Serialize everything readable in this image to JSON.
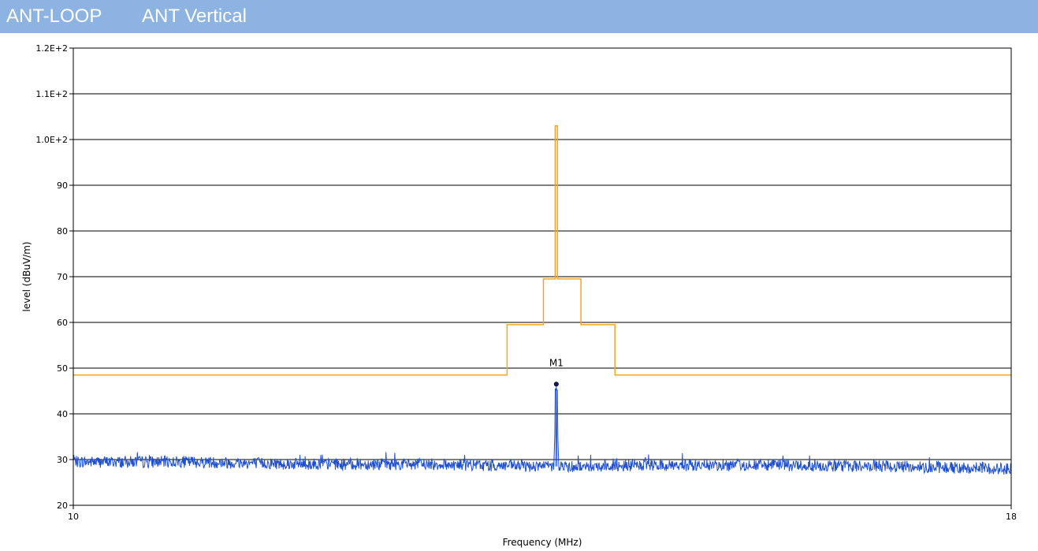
{
  "header": {
    "title_left": "ANT-LOOP",
    "title_right": "ANT Vertical"
  },
  "colors": {
    "title_bar": "#8db3e2",
    "limit_line": "#f5a623",
    "trace": "#1f4fd1",
    "grid": "#000000"
  },
  "chart_data": {
    "type": "line",
    "xlabel": "Frequency (MHz)",
    "ylabel": "level (dBuV/m)",
    "xlim": [
      10,
      18
    ],
    "ylim": [
      20,
      120
    ],
    "x_tick_labels": [
      "10",
      "18"
    ],
    "y_ticks": [
      20,
      30,
      40,
      50,
      60,
      70,
      80,
      90,
      100,
      110,
      120
    ],
    "y_tick_labels": [
      "20",
      "30",
      "40",
      "50",
      "60",
      "70",
      "80",
      "90",
      "1.0E+2",
      "1.1E+2",
      "1.2E+2"
    ],
    "grid": "horizontal",
    "series": [
      {
        "role": "limit",
        "x": [
          10,
          13.7,
          13.7,
          14.01,
          14.01,
          14.11,
          14.11,
          14.13,
          14.13,
          14.33,
          14.33,
          14.62,
          14.62,
          18
        ],
        "y": [
          48.5,
          48.5,
          59.5,
          59.5,
          69.5,
          69.5,
          103,
          103,
          69.5,
          69.5,
          59.5,
          59.5,
          48.5,
          48.5
        ]
      },
      {
        "role": "measured",
        "noise_floor": 29,
        "x": [
          10,
          11,
          12,
          13,
          14,
          14.1,
          14.12,
          14.14,
          14.2,
          15,
          16,
          17,
          18
        ],
        "y": [
          29.5,
          29.5,
          29,
          29,
          28.5,
          28.5,
          46.5,
          28.5,
          28.5,
          28.7,
          28.8,
          28.5,
          28
        ]
      }
    ],
    "markers": [
      {
        "label": "M1",
        "x": 14.12,
        "y": 46.5
      }
    ]
  }
}
